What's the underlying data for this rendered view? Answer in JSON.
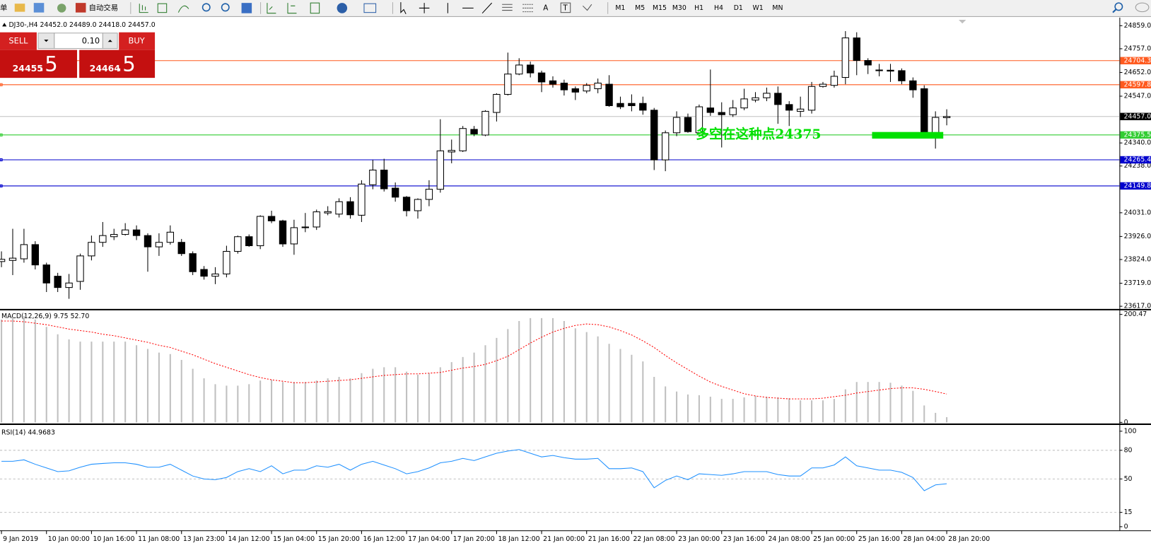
{
  "toolbar": {
    "menu_first": "单",
    "auto_trade": "自动交易",
    "text_tool": "A",
    "label_tool": "T",
    "timeframes": [
      "M1",
      "M5",
      "M15",
      "M30",
      "H1",
      "H4",
      "D1",
      "W1",
      "MN"
    ]
  },
  "trade_panel": {
    "sell": "SELL",
    "buy": "BUY",
    "lot": "0.10",
    "sell_price_main": "24455",
    "sell_price_big": ".5",
    "buy_price_main": "24464",
    "buy_price_big": ".5"
  },
  "chart_data": [
    {
      "type": "candlestick",
      "title": "DJ30-,H4  24452.0 24489.0 24418.0 24457.0",
      "categories": [
        "9 Jan 2019",
        null,
        null,
        null,
        "10 Jan 00:00",
        null,
        null,
        null,
        "10 Jan 16:00",
        null,
        null,
        null,
        "11 Jan 08:00",
        null,
        null,
        null,
        "13 Jan 23:00",
        null,
        null,
        null,
        "14 Jan 12:00",
        null,
        null,
        null,
        "15 Jan 04:00",
        null,
        null,
        null,
        "15 Jan 20:00",
        null,
        null,
        null,
        "16 Jan 12:00",
        null,
        null,
        null,
        "17 Jan 04:00",
        null,
        null,
        null,
        "17 Jan 20:00",
        null,
        null,
        null,
        "18 Jan 12:00",
        null,
        null,
        null,
        "21 Jan 00:00",
        null,
        null,
        null,
        "21 Jan 16:00",
        null,
        null,
        null,
        "22 Jan 08:00",
        null,
        null,
        null,
        "23 Jan 00:00",
        null,
        null,
        null,
        "23 Jan 16:00",
        null,
        null,
        null,
        "24 Jan 08:00",
        null,
        null,
        null,
        "25 Jan 00:00",
        null,
        null,
        null,
        "25 Jan 16:00",
        null,
        null,
        null,
        "28 Jan 04:00",
        null,
        null,
        null,
        "28 Jan 20:00"
      ],
      "open": [
        23815,
        23820,
        23827,
        23890,
        23800,
        23750,
        23700,
        23727,
        23840,
        23900,
        23925,
        23935,
        23955,
        23930,
        23880,
        23900,
        23900,
        23850,
        23780,
        23750,
        23760,
        23860,
        23925,
        23885,
        24015,
        23995,
        23893,
        23965,
        23968,
        24030,
        24025,
        24080,
        24020,
        24155,
        24220,
        24140,
        24100,
        24040,
        24090,
        24135,
        24300,
        24305,
        24400,
        24375,
        24475,
        24555,
        24645,
        24685,
        24650,
        24615,
        24605,
        24580,
        24570,
        24580,
        24600,
        24515,
        24515,
        24515,
        24485,
        24265,
        24385,
        24453,
        24385,
        24495,
        24475,
        24465,
        24495,
        24530,
        24540,
        24560,
        24510,
        24480,
        24485,
        24590,
        24595,
        24630,
        24805,
        24705,
        24660,
        24662,
        24660,
        24615,
        24580,
        24378,
        24452
      ],
      "high": [
        23860,
        23960,
        23960,
        23905,
        23810,
        23765,
        23760,
        23850,
        23930,
        23990,
        23960,
        23985,
        23975,
        23940,
        23940,
        23975,
        23915,
        23860,
        23795,
        23790,
        23885,
        23930,
        23935,
        24020,
        24040,
        24000,
        24000,
        24030,
        24045,
        24060,
        24095,
        24100,
        24175,
        24265,
        24270,
        24165,
        24105,
        24095,
        24175,
        24445,
        24355,
        24415,
        24415,
        24485,
        24560,
        24740,
        24715,
        24700,
        24660,
        24635,
        24620,
        24590,
        24605,
        24625,
        24640,
        24545,
        24555,
        24545,
        24495,
        24395,
        24480,
        24470,
        24510,
        24665,
        24520,
        24530,
        24580,
        24565,
        24585,
        24590,
        24525,
        24545,
        24610,
        24610,
        24660,
        24835,
        24830,
        24715,
        24690,
        24690,
        24670,
        24630,
        24595,
        24480,
        24489
      ],
      "low": [
        23790,
        23755,
        23810,
        23780,
        23680,
        23680,
        23650,
        23690,
        23820,
        23880,
        23910,
        23930,
        23910,
        23770,
        23840,
        23890,
        23840,
        23755,
        23735,
        23715,
        23745,
        23850,
        23880,
        23870,
        23985,
        23880,
        23845,
        23945,
        23955,
        24020,
        24010,
        24005,
        23990,
        24135,
        24125,
        24080,
        24015,
        24005,
        24060,
        24120,
        24250,
        24300,
        24370,
        24370,
        24435,
        24550,
        24640,
        24630,
        24565,
        24585,
        24550,
        24530,
        24560,
        24560,
        24500,
        24490,
        24480,
        24465,
        24220,
        24215,
        24370,
        24385,
        24380,
        24460,
        24320,
        24455,
        24485,
        24520,
        24525,
        24425,
        24415,
        24455,
        24470,
        24585,
        24585,
        24600,
        24640,
        24645,
        24635,
        24610,
        24600,
        24540,
        24365,
        24315,
        24418
      ],
      "close": [
        23825,
        23830,
        23890,
        23800,
        23720,
        23700,
        23720,
        23840,
        23900,
        23930,
        23935,
        23955,
        23930,
        23880,
        23900,
        23945,
        23850,
        23770,
        23750,
        23760,
        23860,
        23925,
        23885,
        24015,
        23995,
        23893,
        23965,
        23968,
        24035,
        24036,
        24080,
        24022,
        24158,
        24220,
        24137,
        24100,
        24040,
        24090,
        24135,
        24305,
        24307,
        24404,
        24380,
        24480,
        24555,
        24645,
        24685,
        24650,
        24610,
        24600,
        24575,
        24565,
        24595,
        24605,
        24505,
        24500,
        24505,
        24485,
        24265,
        24385,
        24453,
        24390,
        24500,
        24475,
        24465,
        24495,
        24535,
        24540,
        24560,
        24510,
        24485,
        24490,
        24590,
        24600,
        24635,
        24805,
        24705,
        24685,
        24663,
        24658,
        24615,
        24575,
        24370,
        24453,
        24457
      ],
      "up_color": "#ffffff",
      "down_color": "#000000",
      "wick_color": "#000000",
      "ylim": [
        23607,
        24885
      ],
      "yticks": [
        {
          "value": 24859,
          "label": "24859.0"
        },
        {
          "value": 24757,
          "label": "24757.0"
        },
        {
          "value": 24652,
          "label": "24652.0"
        },
        {
          "value": 24547,
          "label": "24547.0"
        },
        {
          "value": 24340,
          "label": "24340.0"
        },
        {
          "value": 24238,
          "label": "24238.0"
        },
        {
          "value": 24031,
          "label": "24031.0"
        },
        {
          "value": 23926,
          "label": "23926.0"
        },
        {
          "value": 23824,
          "label": "23824.0"
        },
        {
          "value": 23719,
          "label": "23719.0"
        },
        {
          "value": 23617,
          "label": "23617.0"
        }
      ],
      "hlines": [
        {
          "value": 24704.3,
          "color": "#ff5a1f"
        },
        {
          "value": 24597.8,
          "color": "#ff5a1f"
        },
        {
          "value": 24375.5,
          "color": "#32cd32"
        },
        {
          "value": 24265.4,
          "color": "#0000cd"
        },
        {
          "value": 24149.8,
          "color": "#0000cd"
        }
      ],
      "current_price": {
        "value": 24457,
        "label": "24457.0"
      },
      "current_price_color": "#c0c0c0",
      "annotation": "多空在这种点24375",
      "annotation_color": "#00e000"
    },
    {
      "type": "macd",
      "title": "MACD(12,26,9) 9.75 52.70",
      "values": [
        190.9,
        195.0,
        197.7,
        190.9,
        177.3,
        163.6,
        154.1,
        150.0,
        150.0,
        150.0,
        150.0,
        150.0,
        143.2,
        136.4,
        129.6,
        126.8,
        115.9,
        99.6,
        81.8,
        70.9,
        68.2,
        68.2,
        70.9,
        77.7,
        79.1,
        75.0,
        75.0,
        75.0,
        77.7,
        81.8,
        84.5,
        81.8,
        91.4,
        99.6,
        102.3,
        102.3,
        94.1,
        88.6,
        91.4,
        102.3,
        111.8,
        121.4,
        129.6,
        143.2,
        156.8,
        173.2,
        188.2,
        193.6,
        193.6,
        193.6,
        188.2,
        174.6,
        167.7,
        159.6,
        145.9,
        136.4,
        125.5,
        113.2,
        84.5,
        66.8,
        57.3,
        51.8,
        50.5,
        47.7,
        43.6,
        43.6,
        46.4,
        49.1,
        47.7,
        46.4,
        45.0,
        40.9,
        40.9,
        40.9,
        43.6,
        61.4,
        75.0,
        75.0,
        75.0,
        73.6,
        68.2,
        58.6,
        31.4,
        17.7,
        9.75
      ],
      "signal": [
        188.2,
        188.2,
        186.8,
        184.1,
        181.4,
        177.3,
        173.2,
        170.5,
        167.7,
        163.6,
        160.9,
        156.8,
        152.7,
        148.6,
        143.2,
        139.1,
        132.3,
        125.5,
        117.3,
        109.1,
        102.3,
        95.5,
        88.6,
        83.2,
        79.1,
        76.4,
        73.6,
        73.6,
        75.0,
        76.4,
        77.7,
        79.1,
        81.8,
        84.5,
        87.3,
        88.6,
        90.0,
        90.0,
        91.4,
        92.7,
        96.8,
        100.9,
        103.6,
        107.7,
        114.6,
        122.7,
        135.0,
        147.3,
        158.2,
        167.7,
        174.6,
        180.0,
        182.7,
        181.4,
        177.3,
        170.5,
        162.3,
        151.4,
        139.1,
        124.1,
        110.5,
        98.2,
        85.9,
        75.0,
        66.8,
        60.0,
        53.2,
        49.1,
        46.4,
        45.0,
        43.6,
        43.6,
        43.6,
        45.0,
        47.7,
        50.5,
        54.5,
        57.3,
        60.0,
        62.7,
        64.1,
        64.1,
        61.4,
        57.3,
        52.7
      ],
      "color": "#c0c0c0",
      "signal_color": "#ff0000",
      "ylim": [
        0,
        200.47
      ],
      "yticks": [
        0,
        200.47
      ]
    },
    {
      "type": "line",
      "title": "RSI(14) 44.9683",
      "values": [
        68.5,
        68.5,
        70.0,
        65.4,
        61.5,
        57.7,
        58.5,
        62.3,
        65.4,
        66.2,
        66.9,
        66.9,
        65.4,
        62.3,
        62.3,
        65.4,
        59.2,
        53.1,
        50.0,
        49.2,
        51.5,
        57.7,
        60.8,
        57.7,
        63.8,
        55.4,
        59.2,
        59.2,
        63.8,
        62.3,
        65.4,
        59.2,
        65.4,
        68.5,
        64.6,
        60.8,
        55.4,
        57.7,
        61.5,
        66.9,
        68.5,
        71.5,
        69.2,
        73.1,
        76.9,
        79.2,
        80.8,
        76.9,
        73.1,
        74.6,
        72.3,
        70.8,
        70.8,
        71.5,
        60.8,
        60.8,
        61.5,
        57.7,
        40.8,
        48.5,
        53.1,
        49.2,
        55.4,
        54.6,
        53.8,
        55.4,
        57.7,
        57.7,
        57.7,
        54.6,
        53.1,
        53.1,
        61.5,
        61.5,
        64.6,
        73.1,
        63.8,
        61.5,
        59.2,
        59.2,
        56.9,
        51.5,
        37.7,
        43.8,
        44.9683
      ],
      "color": "#1e90ff",
      "ylim": [
        0,
        100
      ],
      "yticks": [
        0,
        15,
        50,
        80,
        100
      ],
      "grid": true
    }
  ]
}
